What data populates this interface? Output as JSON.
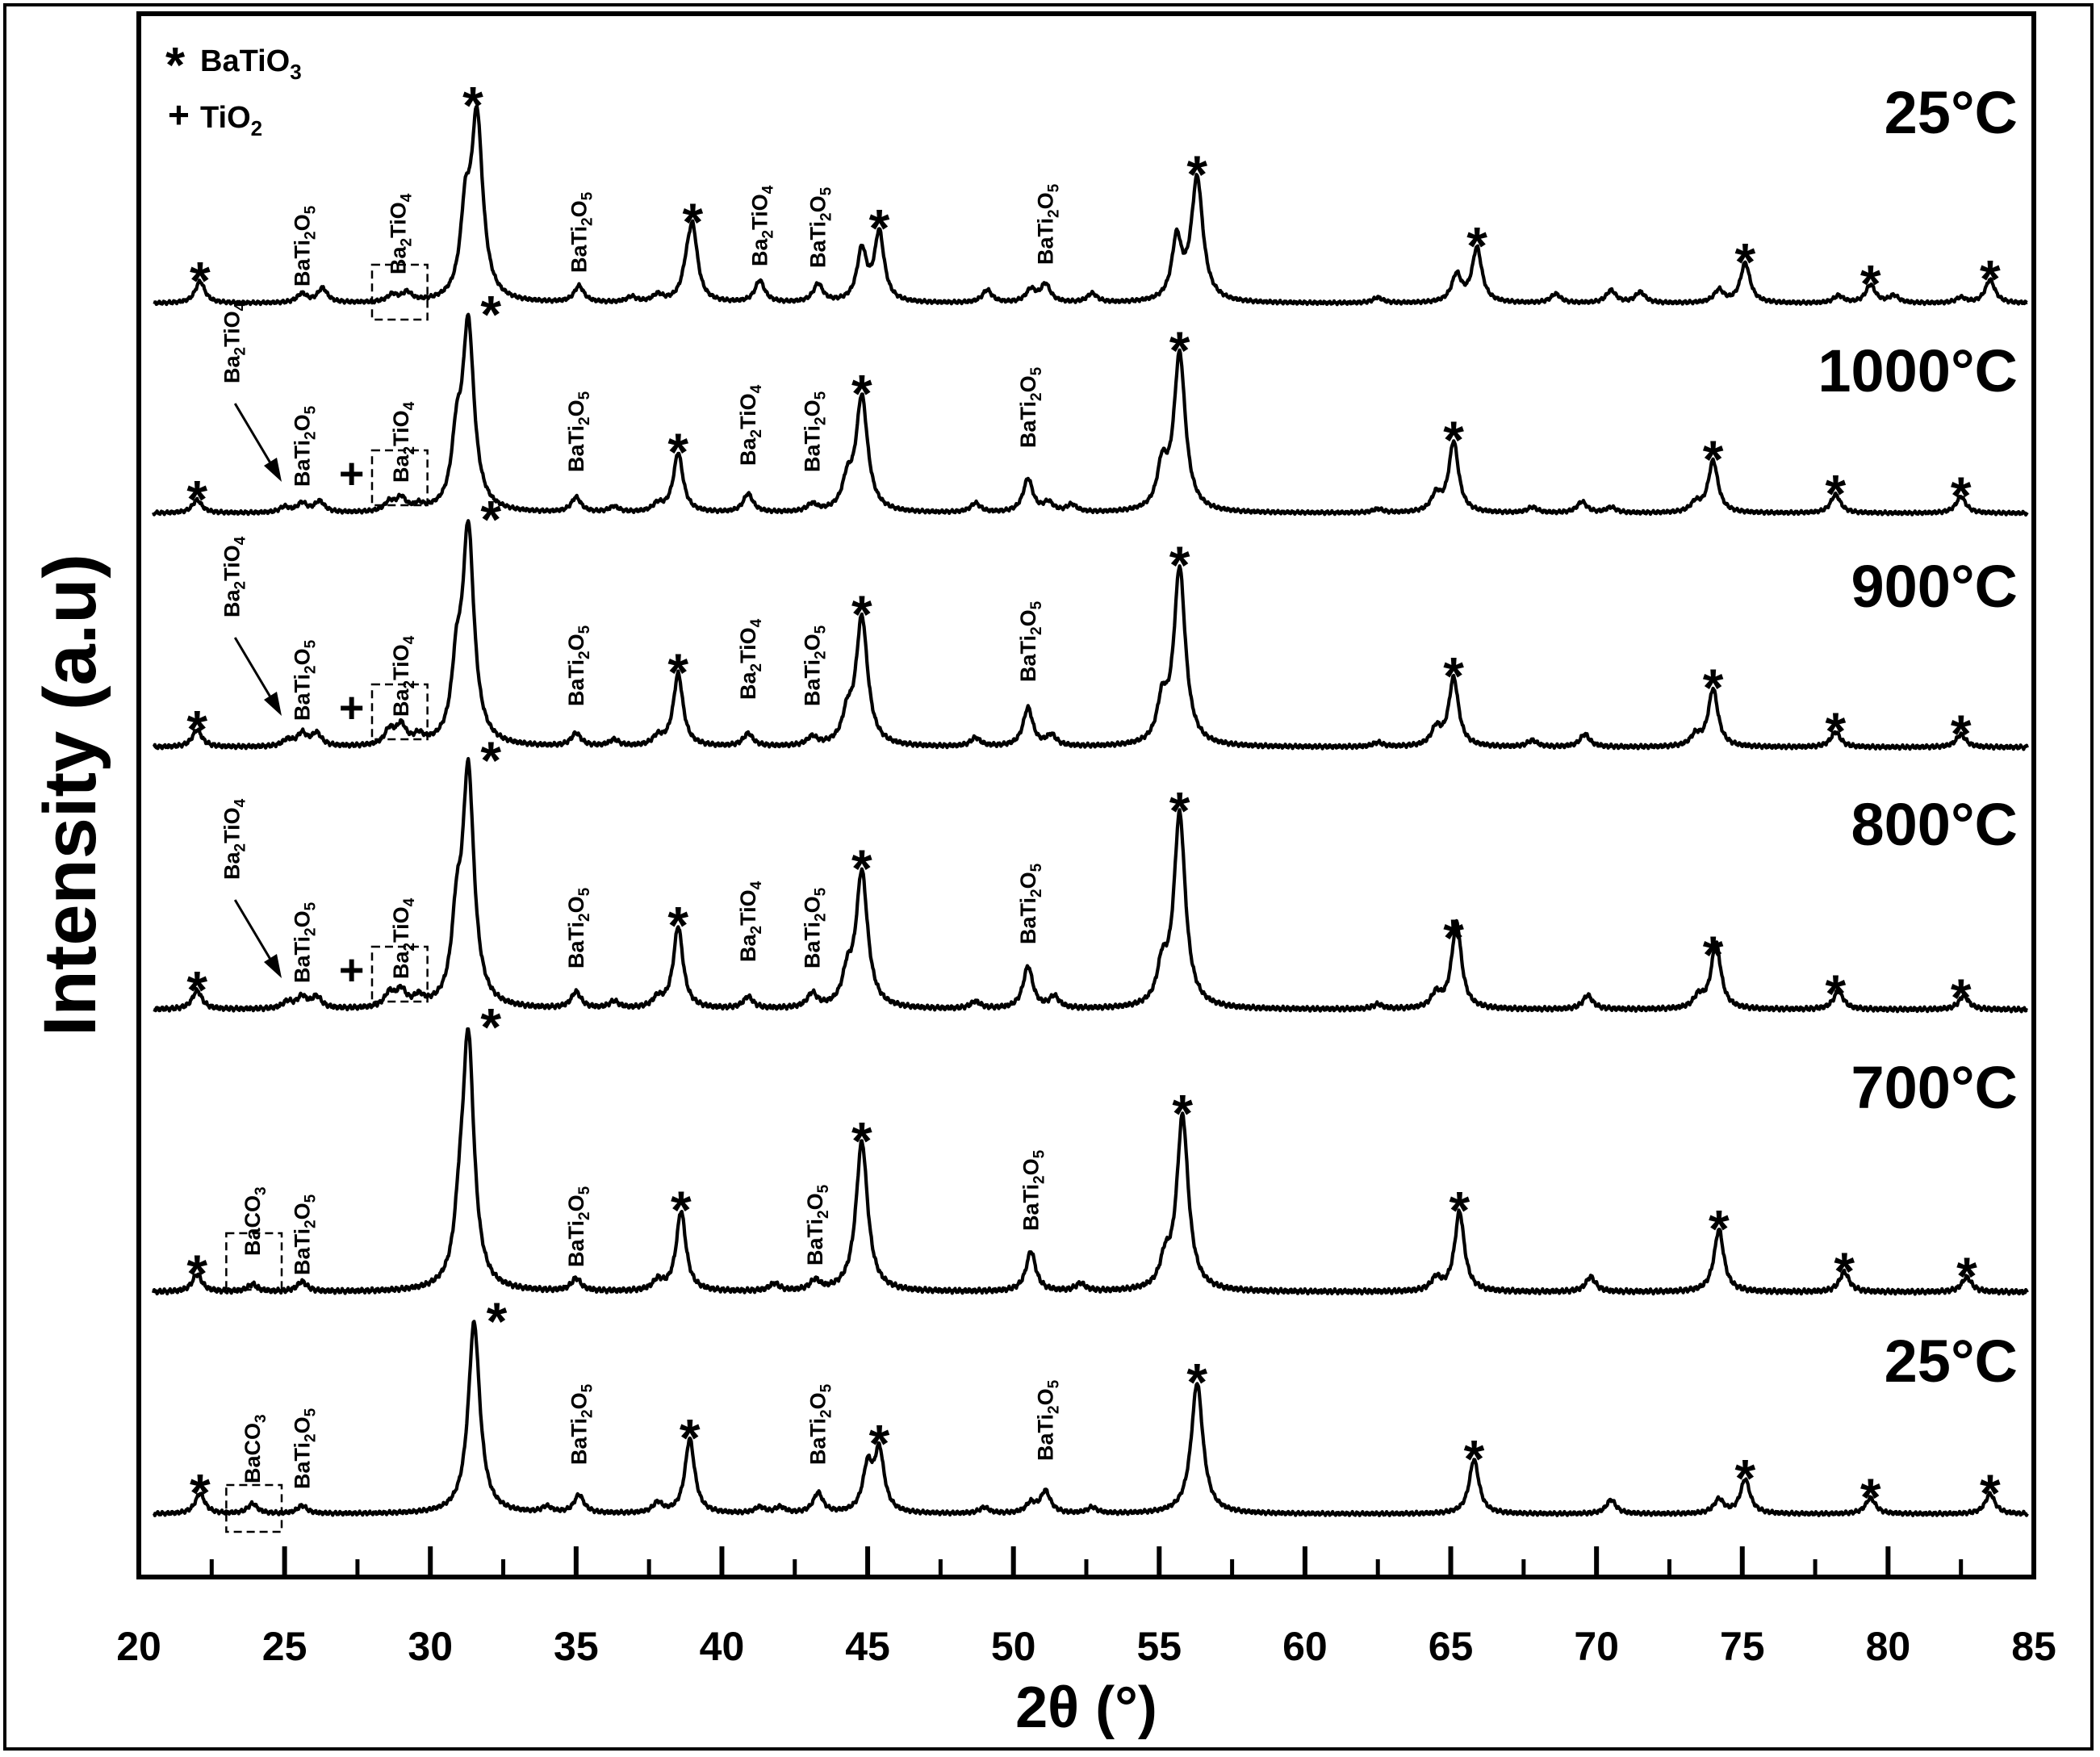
{
  "chart_data": {
    "type": "line",
    "title": "",
    "xlabel": "2θ (°)",
    "ylabel": "Intensity (a.u)",
    "xlim": [
      20,
      85
    ],
    "xticks": [
      20,
      25,
      30,
      35,
      40,
      45,
      50,
      55,
      60,
      65,
      70,
      75,
      80,
      85
    ],
    "grid": false,
    "y_scale": "stacked offset, arbitrary units",
    "legend": {
      "placement": "top-left",
      "entries": [
        {
          "symbol": "*",
          "label": "BaTiO",
          "sub": "3"
        },
        {
          "symbol": "+",
          "label": "TiO",
          "sub": "2"
        }
      ]
    },
    "series": [
      {
        "name": "25°C",
        "peaks": [
          [
            22.1,
            0.12
          ],
          [
            25.6,
            0.05
          ],
          [
            26.3,
            0.08
          ],
          [
            28.7,
            0.04
          ],
          [
            29.2,
            0.05
          ],
          [
            31.2,
            0.42
          ],
          [
            31.6,
            1.0
          ],
          [
            35.1,
            0.09
          ],
          [
            36.9,
            0.03
          ],
          [
            37.8,
            0.04
          ],
          [
            38.8,
            0.12
          ],
          [
            39.0,
            0.38
          ],
          [
            41.3,
            0.12
          ],
          [
            43.3,
            0.1
          ],
          [
            44.8,
            0.28
          ],
          [
            45.4,
            0.38
          ],
          [
            49.1,
            0.07
          ],
          [
            50.6,
            0.07
          ],
          [
            51.1,
            0.1
          ],
          [
            52.7,
            0.05
          ],
          [
            55.6,
            0.33
          ],
          [
            56.3,
            0.68
          ],
          [
            62.5,
            0.03
          ],
          [
            65.2,
            0.15
          ],
          [
            65.9,
            0.3
          ],
          [
            68.6,
            0.05
          ],
          [
            70.5,
            0.07
          ],
          [
            71.5,
            0.06
          ],
          [
            74.2,
            0.07
          ],
          [
            75.1,
            0.22
          ],
          [
            78.3,
            0.04
          ],
          [
            79.4,
            0.1
          ],
          [
            80.2,
            0.04
          ],
          [
            82.5,
            0.03
          ],
          [
            83.5,
            0.13
          ]
        ]
      },
      {
        "name": "1000°C",
        "peaks": [
          [
            22.0,
            0.07
          ],
          [
            25.0,
            0.03
          ],
          [
            25.6,
            0.05
          ],
          [
            26.2,
            0.06
          ],
          [
            28.6,
            0.05
          ],
          [
            29.0,
            0.07
          ],
          [
            29.6,
            0.03
          ],
          [
            30.9,
            0.32
          ],
          [
            31.3,
            1.0
          ],
          [
            35.0,
            0.08
          ],
          [
            36.3,
            0.03
          ],
          [
            37.8,
            0.04
          ],
          [
            38.5,
            0.32
          ],
          [
            40.9,
            0.1
          ],
          [
            43.1,
            0.04
          ],
          [
            44.3,
            0.14
          ],
          [
            44.8,
            0.62
          ],
          [
            48.7,
            0.05
          ],
          [
            50.5,
            0.18
          ],
          [
            51.2,
            0.05
          ],
          [
            52.0,
            0.04
          ],
          [
            55.1,
            0.22
          ],
          [
            55.7,
            0.85
          ],
          [
            62.5,
            0.02
          ],
          [
            64.5,
            0.09
          ],
          [
            65.1,
            0.38
          ],
          [
            67.8,
            0.03
          ],
          [
            69.5,
            0.06
          ],
          [
            70.5,
            0.03
          ],
          [
            73.4,
            0.05
          ],
          [
            74.0,
            0.28
          ],
          [
            78.2,
            0.1
          ],
          [
            82.5,
            0.09
          ]
        ]
      },
      {
        "name": "900°C",
        "peaks": [
          [
            22.0,
            0.08
          ],
          [
            25.1,
            0.03
          ],
          [
            25.6,
            0.06
          ],
          [
            26.1,
            0.06
          ],
          [
            28.6,
            0.07
          ],
          [
            29.0,
            0.09
          ],
          [
            29.6,
            0.04
          ],
          [
            30.9,
            0.3
          ],
          [
            31.3,
            1.0
          ],
          [
            35.0,
            0.06
          ],
          [
            36.3,
            0.03
          ],
          [
            37.8,
            0.04
          ],
          [
            38.5,
            0.34
          ],
          [
            40.9,
            0.06
          ],
          [
            43.1,
            0.04
          ],
          [
            44.3,
            0.12
          ],
          [
            44.8,
            0.6
          ],
          [
            48.7,
            0.04
          ],
          [
            50.5,
            0.18
          ],
          [
            51.3,
            0.05
          ],
          [
            55.1,
            0.18
          ],
          [
            55.7,
            0.83
          ],
          [
            62.5,
            0.02
          ],
          [
            64.5,
            0.08
          ],
          [
            65.1,
            0.32
          ],
          [
            67.8,
            0.03
          ],
          [
            69.6,
            0.06
          ],
          [
            73.4,
            0.05
          ],
          [
            74.0,
            0.27
          ],
          [
            78.2,
            0.07
          ],
          [
            82.5,
            0.06
          ]
        ]
      },
      {
        "name": "800°C",
        "peaks": [
          [
            22.0,
            0.08
          ],
          [
            25.1,
            0.03
          ],
          [
            25.6,
            0.05
          ],
          [
            26.1,
            0.05
          ],
          [
            28.6,
            0.06
          ],
          [
            29.0,
            0.07
          ],
          [
            29.6,
            0.04
          ],
          [
            30.9,
            0.3
          ],
          [
            31.3,
            1.0
          ],
          [
            35.0,
            0.07
          ],
          [
            36.3,
            0.03
          ],
          [
            37.8,
            0.04
          ],
          [
            38.5,
            0.35
          ],
          [
            40.9,
            0.05
          ],
          [
            43.1,
            0.06
          ],
          [
            44.3,
            0.12
          ],
          [
            44.8,
            0.58
          ],
          [
            48.7,
            0.03
          ],
          [
            50.5,
            0.18
          ],
          [
            51.4,
            0.05
          ],
          [
            55.1,
            0.15
          ],
          [
            55.7,
            0.83
          ],
          [
            62.5,
            0.02
          ],
          [
            64.5,
            0.06
          ],
          [
            65.2,
            0.37
          ],
          [
            69.7,
            0.06
          ],
          [
            73.5,
            0.05
          ],
          [
            74.1,
            0.28
          ],
          [
            78.3,
            0.08
          ],
          [
            82.6,
            0.06
          ]
        ]
      },
      {
        "name": "700°C",
        "peaks": [
          [
            22.0,
            0.07
          ],
          [
            23.9,
            0.03
          ],
          [
            25.6,
            0.04
          ],
          [
            31.0,
            0.18
          ],
          [
            31.3,
            1.0
          ],
          [
            35.0,
            0.05
          ],
          [
            37.8,
            0.04
          ],
          [
            38.6,
            0.32
          ],
          [
            41.8,
            0.03
          ],
          [
            43.2,
            0.04
          ],
          [
            44.8,
            0.6
          ],
          [
            50.6,
            0.16
          ],
          [
            52.3,
            0.03
          ],
          [
            55.2,
            0.1
          ],
          [
            55.8,
            0.7
          ],
          [
            64.5,
            0.05
          ],
          [
            65.3,
            0.32
          ],
          [
            69.8,
            0.06
          ],
          [
            74.2,
            0.25
          ],
          [
            78.5,
            0.08
          ],
          [
            82.7,
            0.06
          ]
        ]
      },
      {
        "name": "25°C",
        "peaks": [
          [
            22.1,
            0.1
          ],
          [
            23.9,
            0.05
          ],
          [
            25.6,
            0.04
          ],
          [
            31.5,
            0.95
          ],
          [
            34.0,
            0.03
          ],
          [
            35.1,
            0.09
          ],
          [
            37.8,
            0.05
          ],
          [
            38.9,
            0.37
          ],
          [
            41.3,
            0.03
          ],
          [
            42.0,
            0.03
          ],
          [
            43.3,
            0.1
          ],
          [
            45.0,
            0.22
          ],
          [
            45.4,
            0.3
          ],
          [
            49.0,
            0.03
          ],
          [
            50.6,
            0.05
          ],
          [
            51.1,
            0.11
          ],
          [
            52.7,
            0.03
          ],
          [
            56.3,
            0.65
          ],
          [
            65.8,
            0.27
          ],
          [
            70.5,
            0.07
          ],
          [
            74.2,
            0.07
          ],
          [
            75.1,
            0.17
          ],
          [
            79.4,
            0.08
          ],
          [
            83.5,
            0.1
          ]
        ]
      }
    ],
    "annotations": {
      "bt_star": "*",
      "tio2_plus": "+",
      "BaTi2O5": {
        "base": "BaTi",
        "sub1": "2",
        "mid": "O",
        "sub2": "5"
      },
      "Ba2TiO4": {
        "base": "Ba",
        "sub1": "2",
        "mid": "TiO",
        "sub2": "4"
      },
      "BaCO3": {
        "base": "BaCO",
        "sub": "3"
      }
    }
  }
}
